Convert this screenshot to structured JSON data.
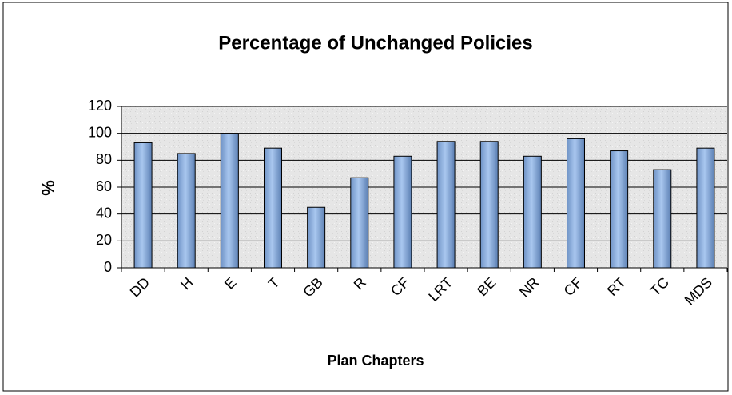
{
  "chart_data": {
    "type": "bar",
    "title": "Percentage of Unchanged Policies",
    "x_label": "Plan Chapters",
    "y_label": "%",
    "categories": [
      "DD",
      "H",
      "E",
      "T",
      "GB",
      "R",
      "CF",
      "LRT",
      "BE",
      "NR",
      "CF",
      "RT",
      "TC",
      "MDS"
    ],
    "values": [
      93,
      85,
      100,
      89,
      45,
      67,
      83,
      94,
      94,
      83,
      96,
      87,
      73,
      89
    ],
    "color": "#8eb4e3",
    "ylim": [
      0,
      120
    ],
    "yticks": [
      0,
      20,
      40,
      60,
      80,
      100,
      120
    ],
    "grid": true
  }
}
